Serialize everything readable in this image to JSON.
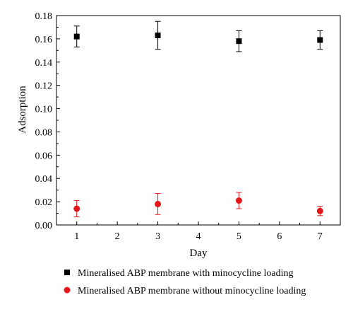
{
  "chart_data": {
    "type": "scatter",
    "title": "",
    "xlabel": "Day",
    "ylabel": "Adsorption",
    "xlim": [
      0.5,
      7.5
    ],
    "ylim": [
      0.0,
      0.18
    ],
    "x_ticks": [
      1,
      2,
      3,
      4,
      5,
      6,
      7
    ],
    "y_ticks": [
      "0.00",
      "0.02",
      "0.04",
      "0.06",
      "0.08",
      "0.10",
      "0.12",
      "0.14",
      "0.16",
      "0.18"
    ],
    "grid": false,
    "legend_position": "bottom",
    "series": [
      {
        "name": "Mineralised ABP membrane with minocycline loading",
        "marker": "square",
        "color": "#000000",
        "x": [
          1,
          3,
          5,
          7
        ],
        "y": [
          0.162,
          0.163,
          0.158,
          0.159
        ],
        "err": [
          0.009,
          0.012,
          0.009,
          0.008
        ]
      },
      {
        "name": "Mineralised ABP membrane without minocycline loading",
        "marker": "circle",
        "color": "#e3161b",
        "x": [
          1,
          3,
          5,
          7
        ],
        "y": [
          0.014,
          0.018,
          0.021,
          0.012
        ],
        "err": [
          0.007,
          0.009,
          0.007,
          0.004
        ]
      }
    ]
  }
}
